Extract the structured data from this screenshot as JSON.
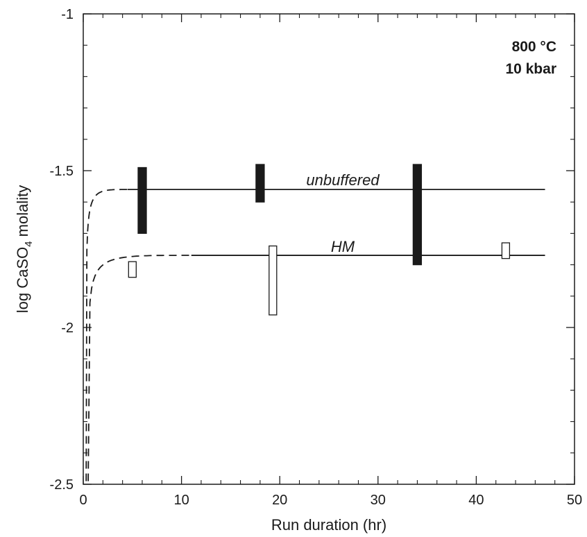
{
  "chart_data": {
    "type": "scatter",
    "xlabel": "Run duration (hr)",
    "ylabel_parts": {
      "main": "log CaSO",
      "sub": "4",
      "tail": " molality"
    },
    "xlim": [
      0,
      50
    ],
    "ylim": [
      -2.5,
      -1
    ],
    "x_ticks": [
      0,
      10,
      20,
      30,
      40,
      50
    ],
    "y_ticks": [
      -2.5,
      -2,
      -1.5,
      -1
    ],
    "x_tick_labels": [
      "0",
      "10",
      "20",
      "30",
      "40",
      "50"
    ],
    "y_tick_labels": [
      "-2.5",
      "-2",
      "-1.5",
      "-1"
    ],
    "x_minor_step": 2,
    "y_minor_step": 0.1,
    "grid": false,
    "conditions": [
      "800 °C",
      "10 kbar"
    ],
    "series": [
      {
        "name": "unbuffered",
        "style": "filled",
        "color": "#1a1a1a",
        "steady_state": -1.56,
        "fit_solid_x": [
          4.5,
          47
        ],
        "fit_dashed_x": [
          0.3,
          4.5
        ],
        "points": [
          {
            "x": 6.0,
            "ylow": -1.7,
            "yhigh": -1.49
          },
          {
            "x": 18.0,
            "ylow": -1.6,
            "yhigh": -1.48
          },
          {
            "x": 34.0,
            "ylow": -1.8,
            "yhigh": -1.48
          }
        ]
      },
      {
        "name": "HM",
        "style": "open",
        "color": "#1a1a1a",
        "steady_state": -1.77,
        "fit_solid_x": [
          11,
          47
        ],
        "fit_dashed_x": [
          0.5,
          11
        ],
        "points": [
          {
            "x": 5.0,
            "ylow": -1.84,
            "yhigh": -1.79
          },
          {
            "x": 19.3,
            "ylow": -1.96,
            "yhigh": -1.74
          },
          {
            "x": 43.0,
            "ylow": -1.78,
            "yhigh": -1.73
          }
        ]
      }
    ]
  }
}
